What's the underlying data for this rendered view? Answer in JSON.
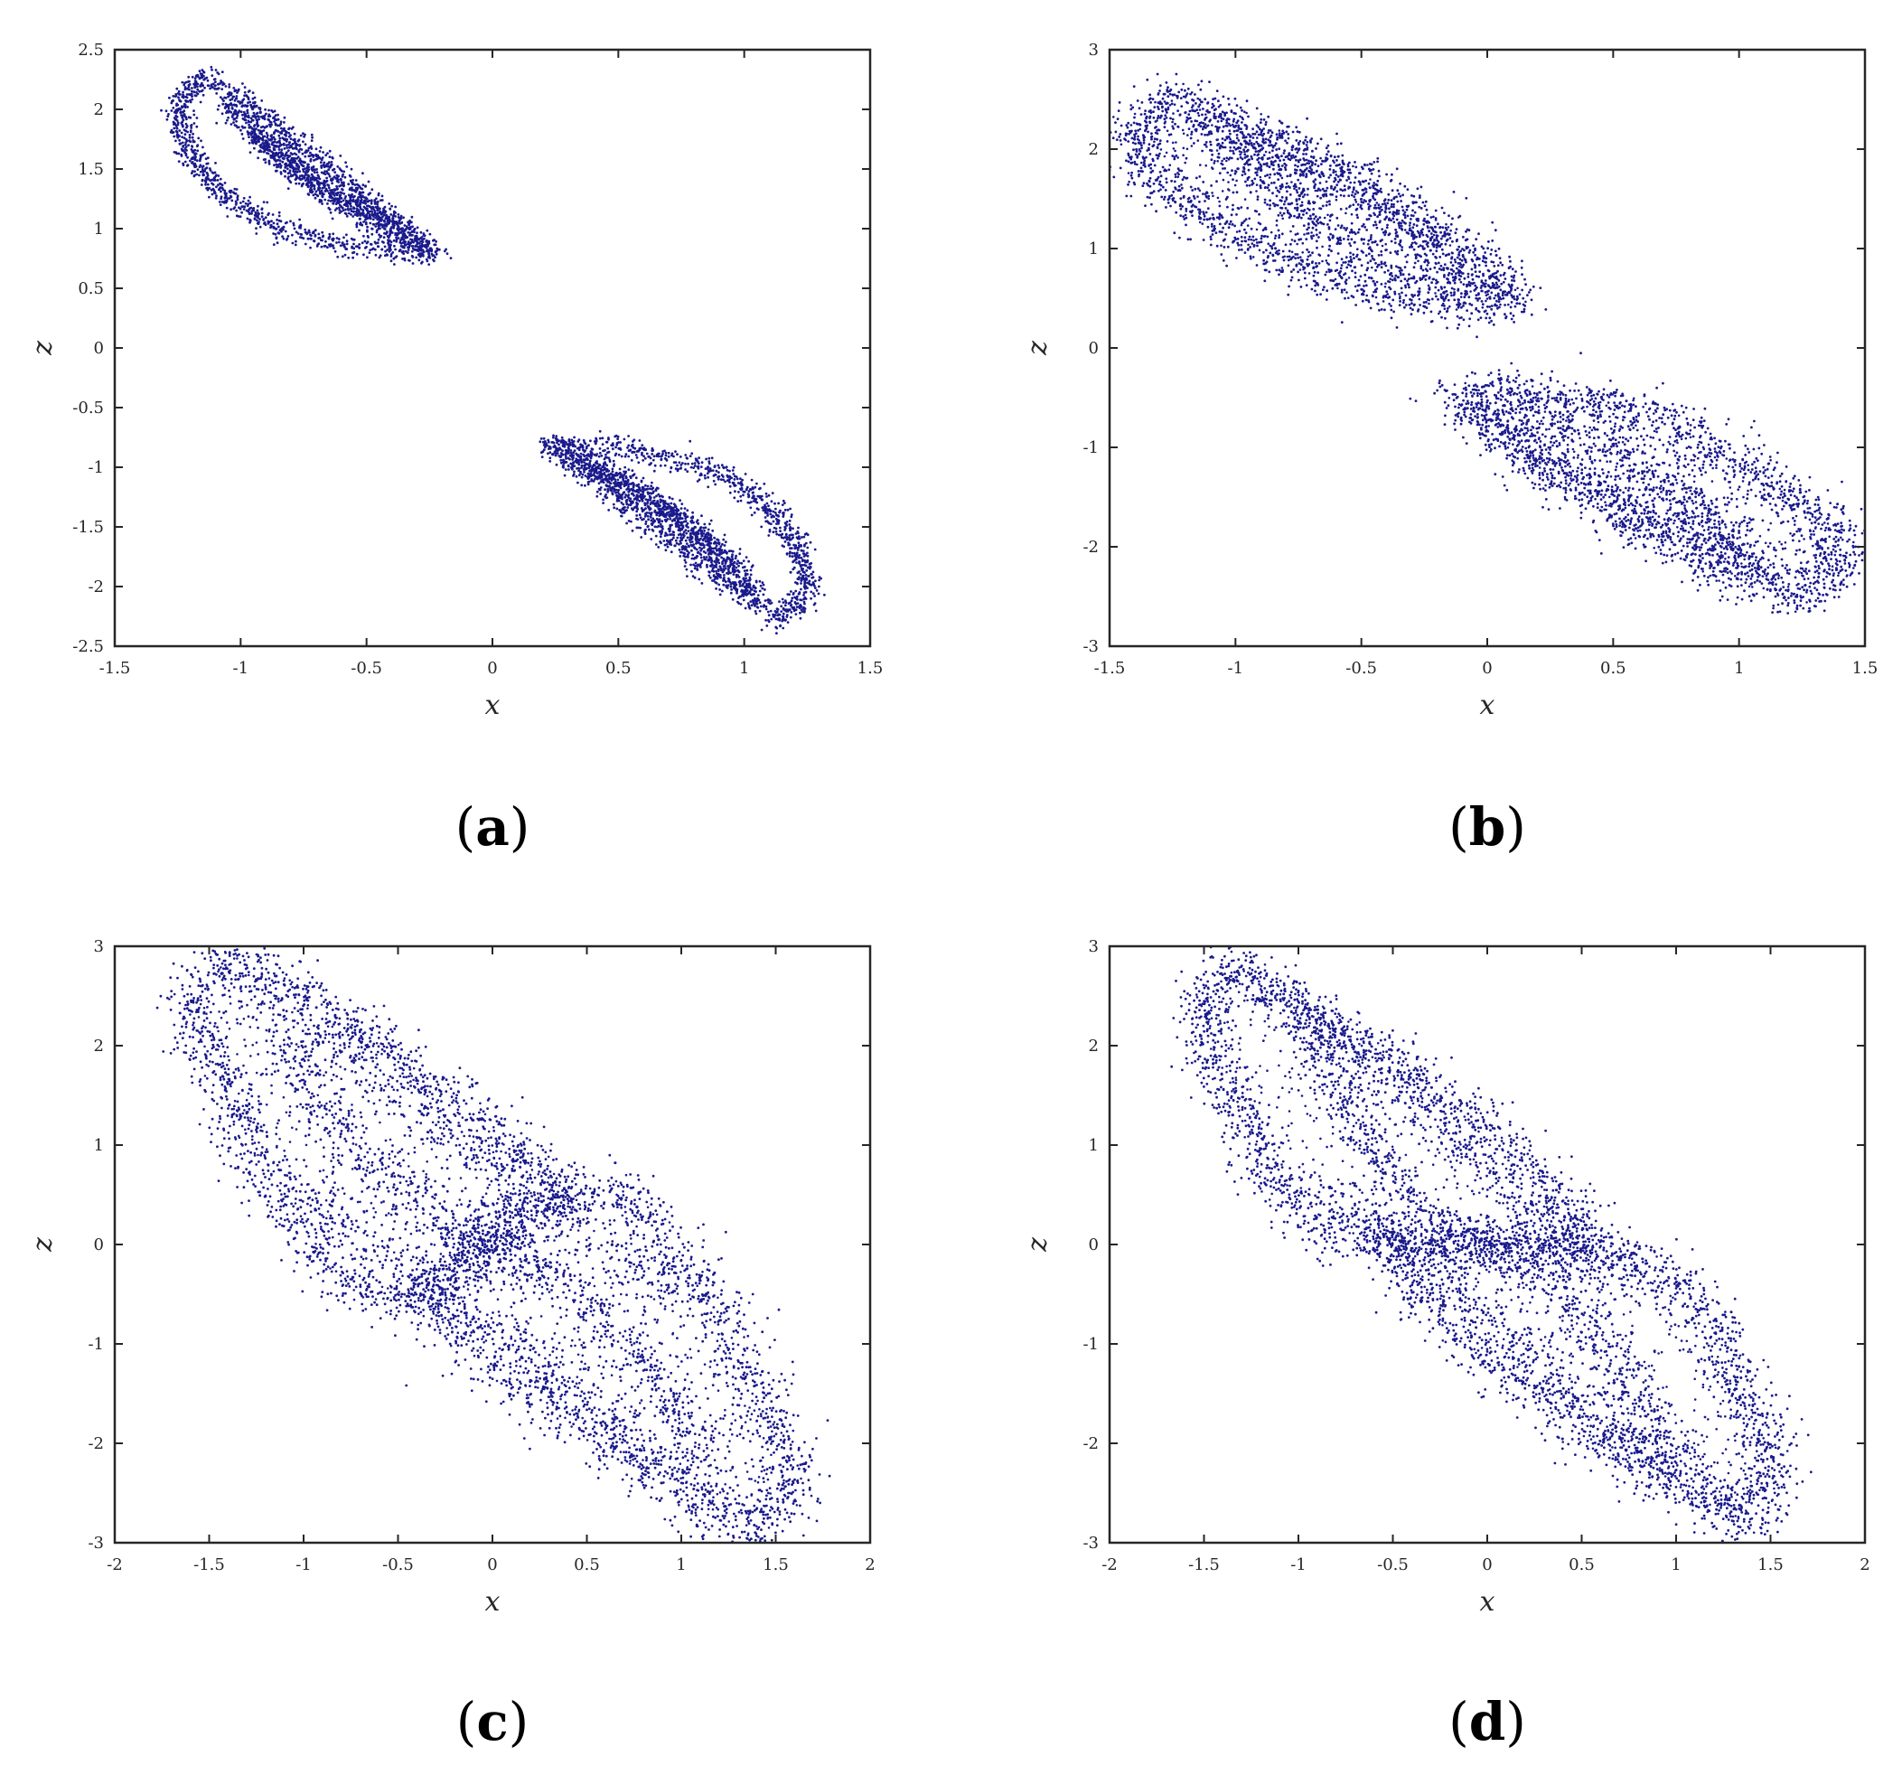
{
  "point_color": "#1a1a8c",
  "chart_data": [
    {
      "type": "scatter",
      "caption": "(a)",
      "caption_letter": "a",
      "xlabel": "x",
      "ylabel": "z",
      "xlim": [
        -1.5,
        1.5
      ],
      "ylim": [
        -2.5,
        2.5
      ],
      "xticks": [
        -1.5,
        -1,
        -0.5,
        0,
        0.5,
        1,
        1.5
      ],
      "xtick_labels": [
        "-1.5",
        "-1",
        "-0.5",
        "0",
        "0.5",
        "1",
        "1.5"
      ],
      "yticks": [
        -2.5,
        -2,
        -1.5,
        -1,
        -0.5,
        0,
        0.5,
        1,
        1.5,
        2,
        2.5
      ],
      "ytick_labels": [
        "-2.5",
        "-2",
        "-1.5",
        "-1",
        "-0.5",
        "0",
        "0.5",
        "1",
        "1.5",
        "2",
        "2.5"
      ],
      "grid": false,
      "legend": "none",
      "attractor": "two separated lobes (period-doubled, symmetric pair)",
      "lobe_outline": [
        [
          -1.25,
          2.05
        ],
        [
          -1.15,
          2.28
        ],
        [
          -0.95,
          2.0
        ],
        [
          -0.7,
          1.6
        ],
        [
          -0.45,
          1.15
        ],
        [
          -0.22,
          0.8
        ],
        [
          -0.3,
          0.8
        ],
        [
          -0.55,
          0.85
        ],
        [
          -0.85,
          1.0
        ],
        [
          -1.05,
          1.25
        ],
        [
          -1.2,
          1.6
        ],
        [
          -1.25,
          2.05
        ]
      ],
      "lobe_ridges": [
        [
          [
            -1.05,
            2.05
          ],
          [
            -0.85,
            1.6
          ],
          [
            -0.6,
            1.25
          ],
          [
            -0.35,
            1.0
          ]
        ],
        [
          [
            -0.95,
            1.8
          ],
          [
            -0.7,
            1.35
          ],
          [
            -0.4,
            0.95
          ],
          [
            -0.25,
            0.82
          ]
        ]
      ],
      "symmetric_copy": true,
      "band_width": 0.03
    },
    {
      "type": "scatter",
      "caption": "(b)",
      "caption_letter": "b",
      "xlabel": "x",
      "ylabel": "z",
      "xlim": [
        -1.5,
        1.5
      ],
      "ylim": [
        -3,
        3
      ],
      "xticks": [
        -1.5,
        -1,
        -0.5,
        0,
        0.5,
        1,
        1.5
      ],
      "xtick_labels": [
        "-1.5",
        "-1",
        "-0.5",
        "0",
        "0.5",
        "1",
        "1.5"
      ],
      "yticks": [
        -3,
        -2,
        -1,
        0,
        1,
        2,
        3
      ],
      "ytick_labels": [
        "-3",
        "-2",
        "-1",
        "0",
        "1",
        "2",
        "3"
      ],
      "grid": false,
      "legend": "none",
      "attractor": "two separated lobes, more diffuse",
      "lobe_outline": [
        [
          -1.4,
          2.2
        ],
        [
          -1.25,
          2.52
        ],
        [
          -1.0,
          2.3
        ],
        [
          -0.6,
          1.8
        ],
        [
          -0.2,
          1.2
        ],
        [
          0.12,
          0.45
        ],
        [
          -0.1,
          0.42
        ],
        [
          -0.45,
          0.5
        ],
        [
          -0.8,
          0.85
        ],
        [
          -1.1,
          1.3
        ],
        [
          -1.35,
          1.8
        ],
        [
          -1.4,
          2.2
        ]
      ],
      "lobe_ridges": [
        [
          [
            -1.05,
            2.1
          ],
          [
            -0.75,
            1.4
          ],
          [
            -0.45,
            0.9
          ],
          [
            -0.1,
            0.55
          ]
        ],
        [
          [
            -1.2,
            2.3
          ],
          [
            -0.8,
            1.9
          ],
          [
            -0.4,
            1.3
          ],
          [
            0.05,
            0.6
          ]
        ]
      ],
      "symmetric_copy": true,
      "band_width": 0.07
    },
    {
      "type": "scatter",
      "caption": "(c)",
      "caption_letter": "c",
      "xlabel": "x",
      "ylabel": "z",
      "xlim": [
        -2,
        2
      ],
      "ylim": [
        -3,
        3
      ],
      "xticks": [
        -2,
        -1.5,
        -1,
        -0.5,
        0,
        0.5,
        1,
        1.5,
        2
      ],
      "xtick_labels": [
        "-2",
        "-1.5",
        "-1",
        "-0.5",
        "0",
        "0.5",
        "1",
        "1.5",
        "2"
      ],
      "yticks": [
        -3,
        -2,
        -1,
        0,
        1,
        2,
        3
      ],
      "ytick_labels": [
        "-3",
        "-2",
        "-1",
        "0",
        "1",
        "2",
        "3"
      ],
      "grid": false,
      "legend": "none",
      "attractor": "merged double-scroll",
      "lobe_outline": [
        [
          -1.6,
          2.5
        ],
        [
          -1.4,
          2.92
        ],
        [
          -1.1,
          2.6
        ],
        [
          -0.6,
          2.0
        ],
        [
          -0.1,
          1.3
        ],
        [
          0.3,
          0.7
        ],
        [
          0.4,
          0.45
        ],
        [
          0.1,
          0.3
        ],
        [
          -0.4,
          -0.5
        ],
        [
          -0.7,
          -0.55
        ],
        [
          -1.1,
          0.4
        ],
        [
          -1.35,
          1.3
        ],
        [
          -1.55,
          2.0
        ],
        [
          -1.6,
          2.5
        ]
      ],
      "lobe_ridges": [
        [
          [
            -1.4,
            2.7
          ],
          [
            -0.9,
            2.2
          ],
          [
            -0.3,
            1.2
          ],
          [
            0.4,
            0.3
          ],
          [
            1.0,
            -0.6
          ]
        ],
        [
          [
            -1.15,
            2.1
          ],
          [
            -0.7,
            0.9
          ],
          [
            -0.3,
            0.3
          ],
          [
            0.3,
            -0.3
          ]
        ]
      ],
      "symmetric_copy": true,
      "band_width": 0.09
    },
    {
      "type": "scatter",
      "caption": "(d)",
      "caption_letter": "d",
      "xlabel": "x",
      "ylabel": "z",
      "xlim": [
        -2,
        2
      ],
      "ylim": [
        -3,
        3
      ],
      "xticks": [
        -2,
        -1.5,
        -1,
        -0.5,
        0,
        0.5,
        1,
        1.5,
        2
      ],
      "xtick_labels": [
        "-2",
        "-1.5",
        "-1",
        "-0.5",
        "0",
        "0.5",
        "1",
        "1.5",
        "2"
      ],
      "yticks": [
        -3,
        -2,
        -1,
        0,
        1,
        2,
        3
      ],
      "ytick_labels": [
        "-3",
        "-2",
        "-1",
        "0",
        "1",
        "2",
        "3"
      ],
      "grid": false,
      "legend": "none",
      "attractor": "merged double-scroll, dense center",
      "lobe_outline": [
        [
          -1.5,
          2.5
        ],
        [
          -1.35,
          2.8
        ],
        [
          -1.1,
          2.55
        ],
        [
          -0.6,
          2.0
        ],
        [
          -0.1,
          1.3
        ],
        [
          0.35,
          0.55
        ],
        [
          0.6,
          -0.1
        ],
        [
          0.2,
          0.0
        ],
        [
          -0.4,
          0.0
        ],
        [
          -0.8,
          0.1
        ],
        [
          -1.1,
          0.5
        ],
        [
          -1.35,
          1.5
        ],
        [
          -1.5,
          2.1
        ],
        [
          -1.5,
          2.5
        ]
      ],
      "lobe_ridges": [
        [
          [
            -1.35,
            2.7
          ],
          [
            -0.8,
            2.1
          ],
          [
            -0.3,
            1.2
          ],
          [
            0.3,
            0.2
          ],
          [
            0.9,
            -0.6
          ]
        ],
        [
          [
            -1.0,
            2.3
          ],
          [
            -0.7,
            1.2
          ],
          [
            -0.4,
            0.4
          ],
          [
            0.2,
            -0.2
          ]
        ]
      ],
      "symmetric_copy": true,
      "band_width": 0.08
    }
  ]
}
